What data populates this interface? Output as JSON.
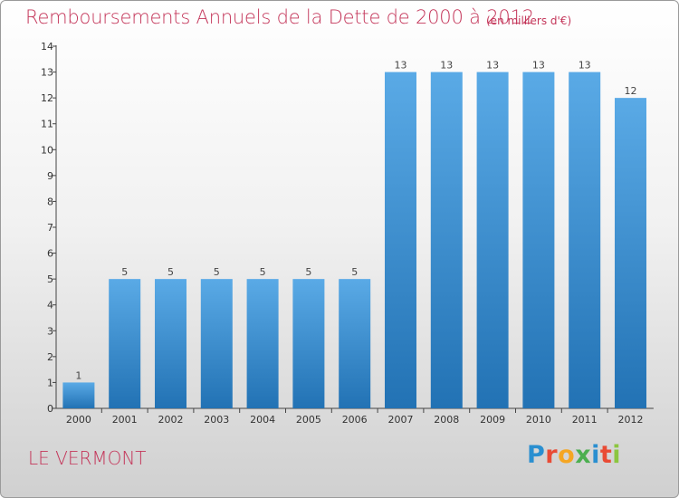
{
  "header": {
    "title": "Remboursements Annuels de la Dette de 2000 à 2012",
    "unit": "(en milliers d'€)"
  },
  "footer": {
    "location": "LE VERMONT",
    "brand": "Proxiti"
  },
  "colors": {
    "title": "#c4365a",
    "bar_top": "#5aaae6",
    "bar_bottom": "#2272b4",
    "axis": "#444444"
  },
  "chart_data": {
    "type": "bar",
    "title": "Remboursements Annuels de la Dette de 2000 à 2012",
    "xlabel": "",
    "ylabel": "",
    "categories": [
      "2000",
      "2001",
      "2002",
      "2003",
      "2004",
      "2005",
      "2006",
      "2007",
      "2008",
      "2009",
      "2010",
      "2011",
      "2012"
    ],
    "values": [
      1,
      5,
      5,
      5,
      5,
      5,
      5,
      13,
      13,
      13,
      13,
      13,
      12
    ],
    "data_labels": [
      "1",
      "5",
      "5",
      "5",
      "5",
      "5",
      "5",
      "13",
      "13",
      "13",
      "13",
      "13",
      "12"
    ],
    "ylim": [
      0,
      14
    ],
    "yticks": [
      0,
      1,
      2,
      3,
      4,
      5,
      6,
      7,
      8,
      9,
      10,
      11,
      12,
      13,
      14
    ],
    "grid": false,
    "legend": "none"
  }
}
